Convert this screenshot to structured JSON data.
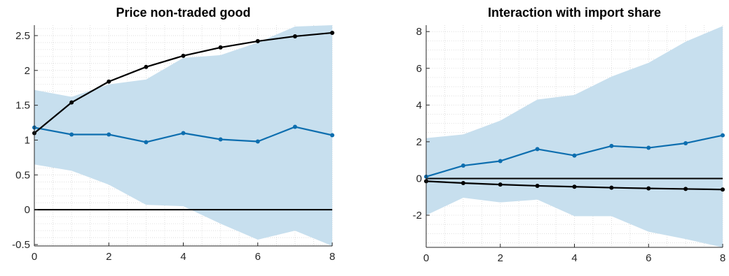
{
  "chart_data": [
    {
      "type": "line",
      "title": "Price non-traded good",
      "xlabel": "",
      "ylabel": "",
      "xlim": [
        0,
        8
      ],
      "ylim": [
        -0.52,
        2.65
      ],
      "xticks": [
        "0",
        "2",
        "4",
        "6",
        "8"
      ],
      "yticks": [
        "-0.5",
        "0",
        "0.5",
        "1",
        "1.5",
        "2",
        "2.5"
      ],
      "grid": "minor dotted",
      "x": [
        0,
        1,
        2,
        3,
        4,
        5,
        6,
        7,
        8
      ],
      "band": {
        "lower": [
          0.65,
          0.56,
          0.36,
          0.07,
          0.05,
          -0.2,
          -0.43,
          -0.3,
          -0.52
        ],
        "upper": [
          1.72,
          1.62,
          1.8,
          1.87,
          2.18,
          2.22,
          2.4,
          2.63,
          2.65
        ],
        "color": "#c7dfee"
      },
      "series": [
        {
          "values": [
            1.18,
            1.08,
            1.08,
            0.97,
            1.1,
            1.01,
            0.98,
            1.19,
            1.07
          ],
          "color": "#0d6eaf"
        },
        {
          "values": [
            1.1,
            1.54,
            1.84,
            2.05,
            2.21,
            2.33,
            2.42,
            2.49,
            2.54
          ],
          "color": "#000000"
        }
      ],
      "zero_line": 0
    },
    {
      "type": "line",
      "title": "Interaction with import share",
      "xlabel": "",
      "ylabel": "",
      "xlim": [
        0,
        8
      ],
      "ylim": [
        -3.75,
        8.35
      ],
      "xticks": [
        "0",
        "2",
        "4",
        "6",
        "8"
      ],
      "yticks": [
        "-2",
        "0",
        "2",
        "4",
        "6",
        "8"
      ],
      "grid": "minor dotted",
      "x": [
        0,
        1,
        2,
        3,
        4,
        5,
        6,
        7,
        8
      ],
      "band": {
        "lower": [
          -2.0,
          -1.05,
          -1.3,
          -1.15,
          -2.05,
          -2.05,
          -2.9,
          -3.3,
          -3.75
        ],
        "upper": [
          2.2,
          2.4,
          3.15,
          4.3,
          4.55,
          5.55,
          6.3,
          7.45,
          8.3
        ],
        "color": "#c7dfee"
      },
      "series": [
        {
          "values": [
            0.1,
            0.7,
            0.95,
            1.6,
            1.25,
            1.77,
            1.67,
            1.92,
            2.35
          ],
          "color": "#0d6eaf"
        },
        {
          "values": [
            -0.15,
            -0.25,
            -0.33,
            -0.4,
            -0.45,
            -0.5,
            -0.54,
            -0.57,
            -0.6
          ],
          "color": "#000000"
        }
      ],
      "zero_line": 0
    }
  ]
}
